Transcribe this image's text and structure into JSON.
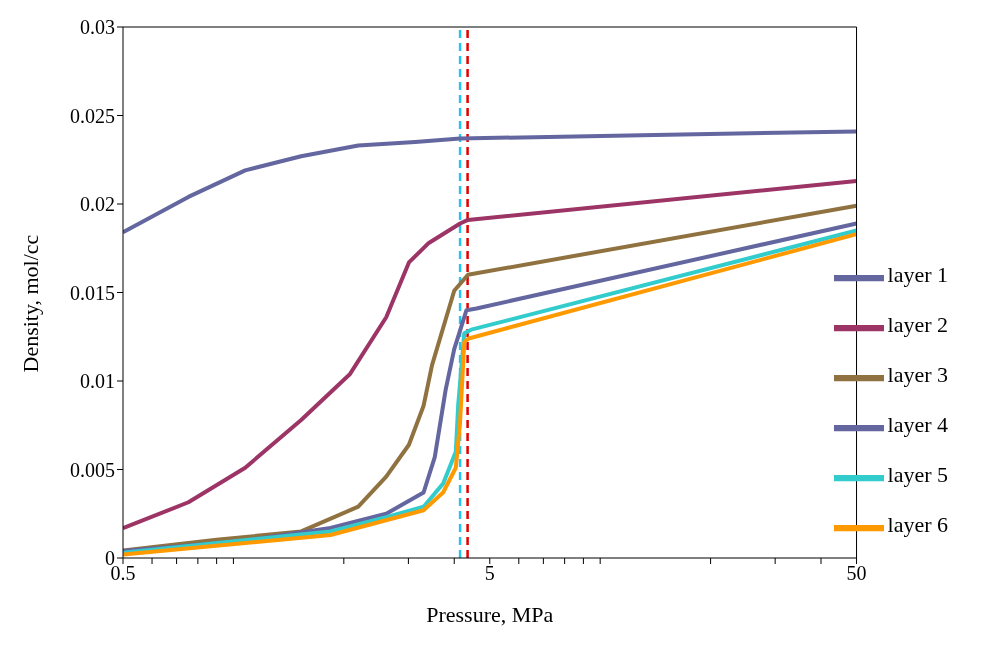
{
  "chart_data": {
    "type": "line",
    "xlabel": "Pressure, MPa",
    "ylabel": "Density, mol/cc",
    "log": "x",
    "xlim": [
      0.5,
      50
    ],
    "ylim": [
      0,
      0.03
    ],
    "xticks": [
      0.5,
      {
        "value": 0.6,
        "label": null
      },
      {
        "value": 0.7,
        "label": null
      },
      {
        "value": 0.8,
        "label": null
      },
      {
        "value": 0.9,
        "label": null
      },
      {
        "value": 1,
        "label": null
      },
      {
        "value": 2,
        "label": null
      },
      {
        "value": 3,
        "label": null
      },
      {
        "value": 4,
        "label": null
      },
      5,
      {
        "value": 6,
        "label": null
      },
      {
        "value": 7,
        "label": null
      },
      {
        "value": 8,
        "label": null
      },
      {
        "value": 9,
        "label": null
      },
      {
        "value": 10,
        "label": null
      },
      {
        "value": 20,
        "label": null
      },
      {
        "value": 30,
        "label": null
      },
      {
        "value": 40,
        "label": null
      },
      50
    ],
    "yticks": [
      0,
      0.005,
      0.01,
      0.015,
      0.02,
      0.025,
      0.03
    ],
    "grid": false,
    "legend": "bottom right",
    "marker": "none",
    "line_style": "solid",
    "ref_lines": [
      {
        "axis": "x",
        "value": 4.15,
        "color": "#22c4f0",
        "line_style": "dashed"
      },
      {
        "axis": "x",
        "value": 4.35,
        "color": "#e00000",
        "line_style": "dashed"
      }
    ],
    "series": [
      {
        "name": "layer 1",
        "color": "#6466a0",
        "x": [
          0.5,
          0.754,
          1.077,
          1.53,
          2.19,
          3.13,
          4.15,
          14.1,
          50
        ],
        "values": [
          0.0184,
          0.0204,
          0.0219,
          0.0227,
          0.0233,
          0.0235,
          0.0237,
          0.0239,
          0.0241
        ]
      },
      {
        "name": "layer 2",
        "color": "#9c3566",
        "x": [
          0.5,
          0.754,
          1.077,
          1.53,
          2.08,
          2.61,
          3.01,
          3.41,
          4.15,
          4.36,
          50
        ],
        "values": [
          0.00168,
          0.00315,
          0.0051,
          0.0078,
          0.0104,
          0.0136,
          0.0167,
          0.0178,
          0.0189,
          0.0191,
          0.0213
        ]
      },
      {
        "name": "layer 3",
        "color": "#8f7240",
        "x": [
          0.5,
          0.9,
          1.53,
          2.19,
          2.61,
          3.01,
          3.3,
          3.48,
          4.0,
          4.36,
          50
        ],
        "values": [
          0.00043,
          0.00103,
          0.0015,
          0.0029,
          0.0046,
          0.0064,
          0.0086,
          0.0109,
          0.0151,
          0.016,
          0.0199
        ]
      },
      {
        "name": "layer 4",
        "color": "#6466a0",
        "x": [
          0.5,
          1.077,
          1.84,
          2.61,
          3.3,
          3.54,
          3.79,
          4.0,
          4.32,
          4.6,
          50
        ],
        "values": [
          0.0004,
          0.00098,
          0.0017,
          0.0025,
          0.0037,
          0.0057,
          0.0095,
          0.0118,
          0.014,
          0.0141,
          0.0189
        ]
      },
      {
        "name": "layer 5",
        "color": "#33cccc",
        "x": [
          0.5,
          1.84,
          2.61,
          3.3,
          3.73,
          4.04,
          4.1,
          4.26,
          4.45,
          50
        ],
        "values": [
          0.0003,
          0.0015,
          0.0023,
          0.0029,
          0.0042,
          0.006,
          0.0086,
          0.0127,
          0.0129,
          0.0185
        ]
      },
      {
        "name": "layer 6",
        "color": "#ff9900",
        "x": [
          0.5,
          1.84,
          3.3,
          3.73,
          4.04,
          4.15,
          4.26,
          4.38,
          50
        ],
        "values": [
          0.0002,
          0.0013,
          0.0027,
          0.0037,
          0.0051,
          0.0077,
          0.0122,
          0.0124,
          0.0183
        ]
      }
    ]
  }
}
